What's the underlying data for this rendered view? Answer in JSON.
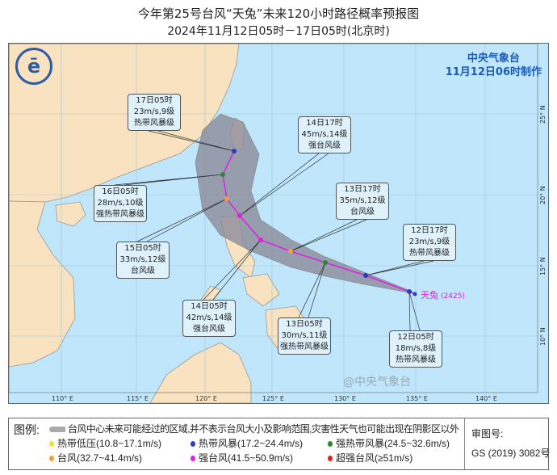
{
  "header": {
    "title": "今年第25号台风“天兔”未来120小时路径概率预报图",
    "subtitle": "2024年11月12日05时－17日05时(北京时)"
  },
  "agency": {
    "name": "中央气象台",
    "made": "11月12日06时制作"
  },
  "map": {
    "longitude_labels": [
      "110° E",
      "115° E",
      "120° E",
      "125° E",
      "130° E",
      "135° E",
      "140° E"
    ],
    "latitude_labels": [
      "25° N",
      "20° N",
      "15° N",
      "10° N"
    ],
    "typhoon_label": "天兔",
    "typhoon_code": "(2425)",
    "colors": {
      "track": "#e020e0",
      "cone": "#8c8c9a",
      "sea": "#bfe6fa",
      "land": "#f8e2c0"
    },
    "forecasts": [
      {
        "time": "12日05时",
        "wind": "18m/s,8级",
        "level": "热带风暴级",
        "color": "#2a3fbf"
      },
      {
        "time": "12日17时",
        "wind": "23m/s,9级",
        "level": "热带风暴级",
        "color": "#2a3fbf"
      },
      {
        "time": "13日05时",
        "wind": "30m/s,11级",
        "level": "强热带风暴级",
        "color": "#2a8a2a"
      },
      {
        "time": "13日17时",
        "wind": "35m/s,12级",
        "level": "台风级",
        "color": "#f0a040"
      },
      {
        "time": "14日05时",
        "wind": "42m/s,14级",
        "level": "强台风级",
        "color": "#e020e0"
      },
      {
        "time": "14日17时",
        "wind": "45m/s,14级",
        "level": "强台风级",
        "color": "#e020e0"
      },
      {
        "time": "15日05时",
        "wind": "33m/s,12级",
        "level": "台风级",
        "color": "#f0a040"
      },
      {
        "time": "16日05时",
        "wind": "28m/s,10级",
        "level": "强热带风暴级",
        "color": "#2a8a2a"
      },
      {
        "time": "17日05时",
        "wind": "23m/s,9级",
        "level": "热带风暴级",
        "color": "#2a3fbf"
      }
    ]
  },
  "legend": {
    "title": "图例:",
    "cone_note": "台风中心未来可能经过的区域,并不表示台风大小及影响范围,灾害性天气也可能出现在阴影区以外",
    "items": [
      {
        "label": "热带低压(10.8~17.1m/s)",
        "color": "#f0e040"
      },
      {
        "label": "热带风暴(17.2~24.4m/s)",
        "color": "#2a3fbf"
      },
      {
        "label": "强热带风暴(24.5~32.6m/s)",
        "color": "#2a8a2a"
      },
      {
        "label": "台风(32.7~41.4m/s)",
        "color": "#f0a040"
      },
      {
        "label": "强台风(41.5~50.9m/s)",
        "color": "#e020e0"
      },
      {
        "label": "超强台风(≥51m/s)",
        "color": "#e02020"
      }
    ],
    "approval_label": "审图号:",
    "approval_no": "GS (2019) 3082号"
  },
  "watermark": "@中央气象台"
}
